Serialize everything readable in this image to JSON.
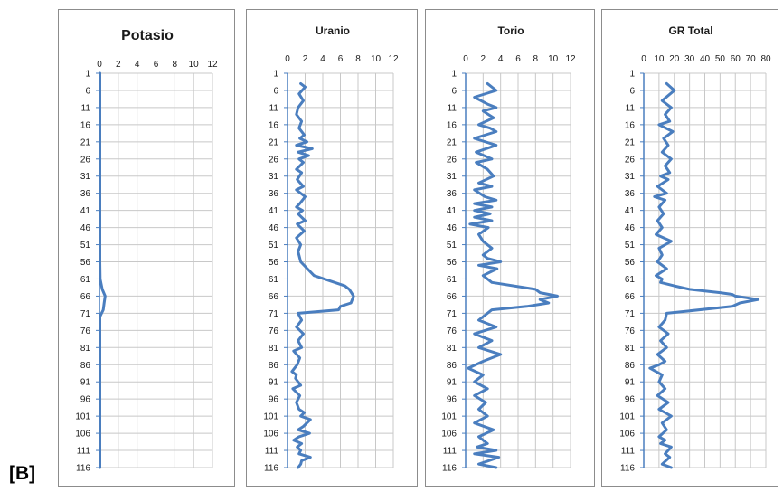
{
  "figure_label": "[B]",
  "chart_data": [
    {
      "type": "line",
      "title": "Potasio",
      "xlim": [
        0,
        12
      ],
      "x_ticks": [
        0,
        2,
        4,
        6,
        8,
        10,
        12
      ],
      "ylim": [
        1,
        116
      ],
      "y_ticks": [
        1,
        6,
        11,
        16,
        21,
        26,
        31,
        36,
        41,
        46,
        51,
        56,
        61,
        66,
        71,
        76,
        81,
        86,
        91,
        96,
        101,
        106,
        111,
        116
      ],
      "y_reversed": true,
      "grid": true,
      "line_color": "#4a7ebf",
      "series": [
        {
          "x": [
            0.05,
            0.05,
            0.05,
            0.05,
            0.05,
            0.05,
            0.05,
            0.05,
            0.05,
            0.05,
            0.05,
            0.05,
            0.08,
            0.3,
            0.6,
            0.5,
            0.4,
            0.05,
            0.05,
            0.05,
            0.05,
            0.05,
            0.05,
            0.05,
            0.05
          ],
          "y": [
            1,
            6,
            11,
            16,
            21,
            26,
            31,
            36,
            41,
            46,
            51,
            56,
            61,
            64,
            66,
            68,
            70,
            72,
            76,
            81,
            91,
            101,
            106,
            111,
            116
          ]
        }
      ]
    },
    {
      "type": "line",
      "title": "Uranio",
      "xlim": [
        0,
        12
      ],
      "x_ticks": [
        0,
        2,
        4,
        6,
        8,
        10,
        12
      ],
      "ylim": [
        1,
        116
      ],
      "y_ticks": [
        1,
        6,
        11,
        16,
        21,
        26,
        31,
        36,
        41,
        46,
        51,
        56,
        61,
        66,
        71,
        76,
        81,
        86,
        91,
        96,
        101,
        106,
        111,
        116
      ],
      "y_reversed": true,
      "grid": true,
      "line_color": "#4a7ebf",
      "series": [
        {
          "x": [
            1.5,
            2,
            1.3,
            1.8,
            1.2,
            1,
            1.6,
            1.3,
            1.9,
            1.4,
            2.2,
            1,
            2.8,
            1.2,
            2.4,
            1.3,
            1.8,
            1,
            1.6,
            1.1,
            1.8,
            1,
            2,
            1.4,
            1,
            1.7,
            1.2,
            2,
            1.1,
            1.9,
            1,
            1.5,
            1.2,
            1.5,
            3,
            6.5,
            7,
            7.5,
            7.2,
            6,
            5.8,
            1.2,
            1.6,
            1,
            1.8,
            1.2,
            1.6,
            0.7,
            1.4,
            1.1,
            0.5,
            1,
            0.9,
            1.5,
            0.6,
            1.4,
            1,
            1.3,
            1.9,
            1.5,
            2.6,
            1.8,
            1.2,
            2.5,
            1.3,
            0.7,
            1.6,
            1.1,
            1.5,
            1.3,
            2.6,
            1.6,
            1.5,
            1.2
          ],
          "y": [
            4,
            5,
            7,
            9,
            11,
            13,
            15,
            17,
            19,
            20,
            21,
            22,
            23,
            24,
            25,
            26,
            27,
            29,
            30,
            32,
            34,
            35,
            37,
            39,
            40,
            41,
            42,
            44,
            45,
            47,
            49,
            51,
            53,
            56,
            60,
            63,
            64,
            66,
            68,
            69,
            70,
            71,
            73,
            75,
            77,
            79,
            81,
            82,
            84,
            86,
            88,
            89,
            90,
            92,
            93,
            95,
            97,
            99,
            100,
            101,
            102,
            104,
            105,
            106,
            107,
            108,
            109,
            110,
            111,
            112,
            113,
            114,
            115,
            116
          ]
        }
      ]
    },
    {
      "type": "line",
      "title": "Torio",
      "xlim": [
        0,
        12
      ],
      "x_ticks": [
        0,
        2,
        4,
        6,
        8,
        10,
        12
      ],
      "ylim": [
        1,
        116
      ],
      "y_ticks": [
        1,
        6,
        11,
        16,
        21,
        26,
        31,
        36,
        41,
        46,
        51,
        56,
        61,
        66,
        71,
        76,
        81,
        86,
        91,
        96,
        101,
        106,
        111,
        116
      ],
      "y_reversed": true,
      "grid": true,
      "line_color": "#4a7ebf",
      "series": [
        {
          "x": [
            2.5,
            3.5,
            1,
            2.5,
            3.5,
            2,
            3.2,
            1.5,
            2.8,
            3.5,
            1,
            3.5,
            1.2,
            3,
            1.2,
            2.5,
            3.2,
            1.5,
            3,
            1,
            2.2,
            3.5,
            1,
            3,
            1,
            2.8,
            1,
            3,
            0.5,
            2.6,
            1.5,
            2,
            3,
            2,
            2.5,
            4,
            1.5,
            3.6,
            2,
            3,
            8,
            8.5,
            10.5,
            8.5,
            9.5,
            7,
            3,
            1.5,
            3.5,
            1,
            3,
            1.5,
            4,
            2,
            0.3,
            2,
            1,
            2.5,
            1,
            2.3,
            1.5,
            2.5,
            1,
            3.2,
            1.5,
            2.5,
            1.3,
            3.5,
            1,
            3.8,
            1.5,
            3.5
          ],
          "y": [
            4,
            6,
            8,
            10,
            11,
            12,
            14,
            16,
            17,
            18,
            20,
            22,
            24,
            26,
            27,
            29,
            31,
            33,
            34,
            35,
            37,
            38,
            39,
            40,
            41,
            42,
            43,
            44,
            45,
            46,
            48,
            50,
            52,
            54,
            55,
            56,
            57,
            58,
            60,
            62,
            64,
            65,
            66,
            67,
            68,
            69,
            70,
            73,
            75,
            77,
            79,
            81,
            83,
            85,
            87,
            89,
            91,
            93,
            95,
            97,
            99,
            101,
            103,
            105,
            107,
            109,
            110,
            111,
            112,
            113,
            115,
            116
          ]
        }
      ]
    },
    {
      "type": "line",
      "title": "GR Total",
      "xlim": [
        0,
        80
      ],
      "x_ticks": [
        0,
        10,
        20,
        30,
        40,
        50,
        60,
        70,
        80
      ],
      "ylim": [
        1,
        116
      ],
      "y_ticks": [
        1,
        6,
        11,
        16,
        21,
        26,
        31,
        36,
        41,
        46,
        51,
        56,
        61,
        66,
        71,
        76,
        81,
        86,
        91,
        96,
        101,
        106,
        111,
        116
      ],
      "y_reversed": true,
      "grid": true,
      "line_color": "#4a7ebf",
      "series": [
        {
          "x": [
            15,
            20,
            12,
            18,
            14,
            17,
            10,
            19,
            13,
            16,
            12,
            18,
            14,
            17,
            11,
            16,
            9,
            15,
            7,
            14,
            10,
            13,
            9,
            12,
            8,
            18,
            10,
            12,
            9,
            15,
            8,
            12,
            11,
            20,
            30,
            50,
            58,
            60,
            75,
            63,
            58,
            15,
            14,
            10,
            16,
            11,
            15,
            9,
            14,
            10,
            4,
            12,
            10,
            14,
            9,
            16,
            10,
            18,
            12,
            15,
            10,
            14,
            11,
            18,
            14,
            17,
            12,
            18
          ],
          "y": [
            4,
            6,
            9,
            11,
            13,
            15,
            16,
            18,
            20,
            22,
            24,
            26,
            28,
            30,
            31,
            32,
            34,
            36,
            37,
            38,
            40,
            42,
            44,
            46,
            48,
            50,
            52,
            54,
            56,
            58,
            60,
            61,
            62,
            63,
            64,
            65,
            65.5,
            66,
            67,
            68,
            69,
            71,
            73,
            75,
            77,
            79,
            81,
            83,
            85,
            86,
            87,
            89,
            91,
            93,
            95,
            97,
            99,
            101,
            103,
            105,
            107,
            108,
            109,
            110,
            112,
            113,
            115,
            116
          ]
        }
      ]
    }
  ]
}
